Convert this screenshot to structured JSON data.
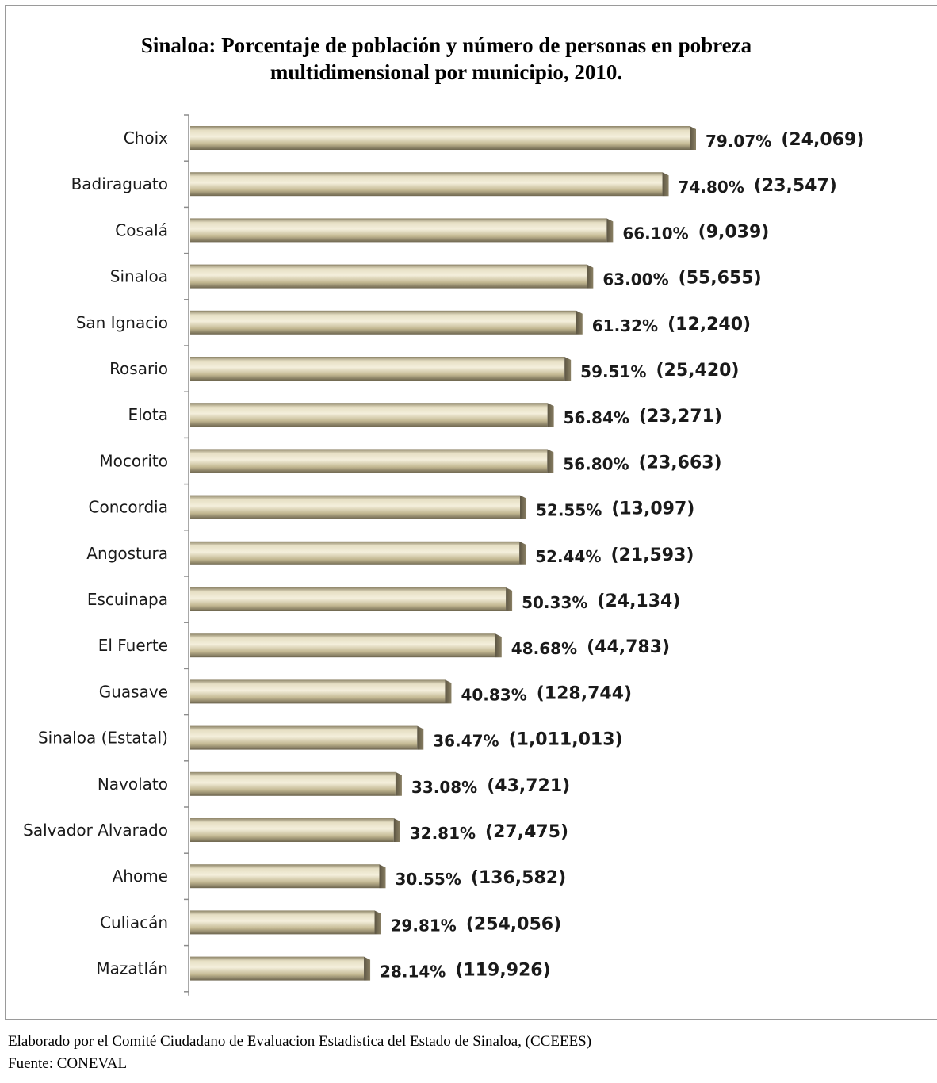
{
  "chart_data": {
    "type": "bar",
    "orientation": "horizontal",
    "title": "Sinaloa: Porcentaje de población y número de personas en pobreza\nmultidimensional por municipio, 2010.",
    "xlabel": "",
    "ylabel": "",
    "grid": false,
    "legend": "none",
    "xlim": [
      0,
      100
    ],
    "categories": [
      "Choix",
      "Badiraguato",
      "Cosalá",
      "Sinaloa",
      "San Ignacio",
      "Rosario",
      "Elota",
      "Mocorito",
      "Concordia",
      "Angostura",
      "Escuinapa",
      "El Fuerte",
      "Guasave",
      "Sinaloa (Estatal)",
      "Navolato",
      "Salvador Alvarado",
      "Ahome",
      "Culiacán",
      "Mazatlán"
    ],
    "values": [
      79.07,
      74.8,
      66.1,
      63.0,
      61.32,
      59.51,
      56.84,
      56.8,
      52.55,
      52.44,
      50.33,
      48.68,
      40.83,
      36.47,
      33.08,
      32.81,
      30.55,
      29.81,
      28.14
    ],
    "percent_labels": [
      "79.07%",
      "74.80%",
      "66.10%",
      "63.00%",
      "61.32%",
      "59.51%",
      "56.84%",
      "56.80%",
      "52.55%",
      "52.44%",
      "50.33%",
      "48.68%",
      "40.83%",
      "36.47%",
      "33.08%",
      "32.81%",
      "30.55%",
      "29.81%",
      "28.14%"
    ],
    "people_labels": [
      "(24,069)",
      "(23,547)",
      "(9,039)",
      "(55,655)",
      "(12,240)",
      "(25,420)",
      "(23,271)",
      "(23,663)",
      "(13,097)",
      "(21,593)",
      "(24,134)",
      "(44,783)",
      "(128,744)",
      "(1,011,013)",
      "(43,721)",
      "(27,475)",
      "(136,582)",
      "(254,056)",
      "(119,926)"
    ],
    "bar_color": "#c9bf9a"
  },
  "footer": {
    "credit": "Elaborado por el Comité Ciudadano de Evaluacion Estadistica del Estado de Sinaloa, (CCEEES)",
    "source": "Fuente: CONEVAL"
  }
}
